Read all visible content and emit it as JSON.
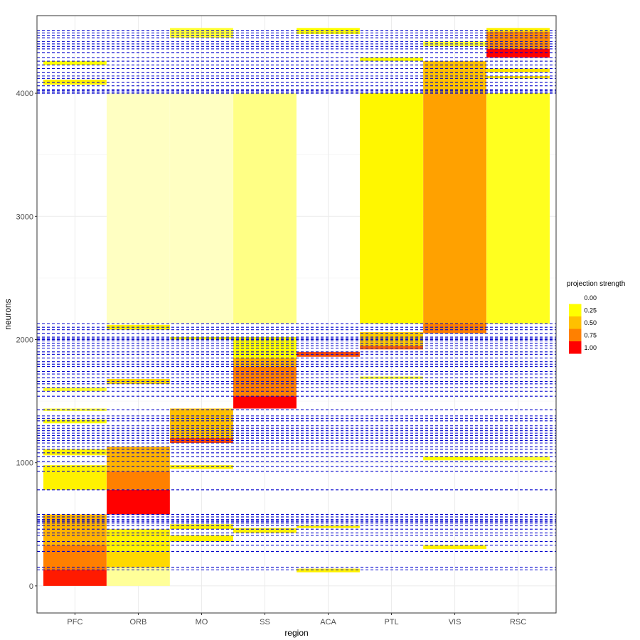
{
  "chart_data": {
    "type": "heatmap",
    "title": "",
    "xlabel": "region",
    "ylabel": "neurons",
    "categories": [
      "PFC",
      "ORB",
      "MO",
      "SS",
      "ACA",
      "PTL",
      "VIS",
      "RSC"
    ],
    "ylim": [
      -220,
      4630
    ],
    "y_ticks": [
      0,
      1000,
      2000,
      3000,
      4000
    ],
    "grid": true,
    "legend": {
      "title": "projection strength",
      "position": "right",
      "levels": [
        {
          "label": "0.00",
          "value": 0.0,
          "color": "#FFFFFF"
        },
        {
          "label": "0.25",
          "value": 0.25,
          "color": "#FFFF00"
        },
        {
          "label": "0.50",
          "value": 0.5,
          "color": "#FFC000"
        },
        {
          "label": "0.75",
          "value": 0.75,
          "color": "#FF8000"
        },
        {
          "label": "1.00",
          "value": 1.0,
          "color": "#FF0000"
        }
      ]
    },
    "cluster_boundaries": [
      130,
      150,
      280,
      330,
      360,
      410,
      430,
      460,
      490,
      510,
      520,
      530,
      540,
      560,
      580,
      780,
      930,
      970,
      1010,
      1050,
      1080,
      1110,
      1130,
      1160,
      1180,
      1200,
      1220,
      1240,
      1260,
      1280,
      1300,
      1340,
      1360,
      1380,
      1430,
      1540,
      1580,
      1610,
      1640,
      1660,
      1690,
      1720,
      1740,
      1780,
      1800,
      1820,
      1850,
      1880,
      1900,
      1930,
      1950,
      1970,
      1990,
      2000,
      2010,
      2020,
      2050,
      2080,
      2100,
      2130,
      4000,
      4010,
      4020,
      4030,
      4060,
      4090,
      4120,
      4140,
      4170,
      4200,
      4230,
      4260,
      4290,
      4330,
      4360,
      4380,
      4400,
      4420,
      4450,
      4470,
      4490,
      4510
    ],
    "blocks": [
      {
        "region": "PFC",
        "start": 0,
        "end": 130,
        "value": 0.95
      },
      {
        "region": "PFC",
        "start": 130,
        "end": 330,
        "value": 0.75
      },
      {
        "region": "PFC",
        "start": 330,
        "end": 580,
        "value": 0.55
      },
      {
        "region": "PFC",
        "start": 780,
        "end": 980,
        "value": 0.3
      },
      {
        "region": "PFC",
        "start": 1060,
        "end": 1110,
        "value": 0.3
      },
      {
        "region": "PFC",
        "start": 1320,
        "end": 1350,
        "value": 0.25
      },
      {
        "region": "PFC",
        "start": 1420,
        "end": 1440,
        "value": 0.2
      },
      {
        "region": "PFC",
        "start": 1580,
        "end": 1610,
        "value": 0.2
      },
      {
        "region": "PFC",
        "start": 4070,
        "end": 4110,
        "value": 0.3
      },
      {
        "region": "PFC",
        "start": 4230,
        "end": 4260,
        "value": 0.25
      },
      {
        "region": "ORB",
        "start": 0,
        "end": 150,
        "value": 0.1
      },
      {
        "region": "ORB",
        "start": 150,
        "end": 280,
        "value": 0.4
      },
      {
        "region": "ORB",
        "start": 280,
        "end": 460,
        "value": 0.3
      },
      {
        "region": "ORB",
        "start": 580,
        "end": 780,
        "value": 1.0
      },
      {
        "region": "ORB",
        "start": 780,
        "end": 930,
        "value": 0.75
      },
      {
        "region": "ORB",
        "start": 930,
        "end": 1130,
        "value": 0.55
      },
      {
        "region": "ORB",
        "start": 1640,
        "end": 1680,
        "value": 0.4
      },
      {
        "region": "ORB",
        "start": 2080,
        "end": 2120,
        "value": 0.3
      },
      {
        "region": "ORB",
        "start": 2130,
        "end": 4000,
        "value": 0.06
      },
      {
        "region": "MO",
        "start": 360,
        "end": 410,
        "value": 0.3
      },
      {
        "region": "MO",
        "start": 460,
        "end": 500,
        "value": 0.3
      },
      {
        "region": "MO",
        "start": 950,
        "end": 980,
        "value": 0.3
      },
      {
        "region": "MO",
        "start": 1160,
        "end": 1200,
        "value": 0.85
      },
      {
        "region": "MO",
        "start": 1200,
        "end": 1440,
        "value": 0.5
      },
      {
        "region": "MO",
        "start": 2000,
        "end": 2020,
        "value": 0.25
      },
      {
        "region": "MO",
        "start": 2130,
        "end": 4000,
        "value": 0.06
      },
      {
        "region": "MO",
        "start": 4450,
        "end": 4530,
        "value": 0.2
      },
      {
        "region": "SS",
        "start": 430,
        "end": 470,
        "value": 0.3
      },
      {
        "region": "SS",
        "start": 1440,
        "end": 1540,
        "value": 1.0
      },
      {
        "region": "SS",
        "start": 1540,
        "end": 1780,
        "value": 0.75
      },
      {
        "region": "SS",
        "start": 1780,
        "end": 1850,
        "value": 0.55
      },
      {
        "region": "SS",
        "start": 1850,
        "end": 2020,
        "value": 0.25
      },
      {
        "region": "SS",
        "start": 2130,
        "end": 4000,
        "value": 0.12
      },
      {
        "region": "ACA",
        "start": 110,
        "end": 140,
        "value": 0.3
      },
      {
        "region": "ACA",
        "start": 470,
        "end": 490,
        "value": 0.3
      },
      {
        "region": "ACA",
        "start": 1860,
        "end": 1900,
        "value": 0.85
      },
      {
        "region": "ACA",
        "start": 4480,
        "end": 4530,
        "value": 0.25
      },
      {
        "region": "PTL",
        "start": 1920,
        "end": 1950,
        "value": 0.8
      },
      {
        "region": "PTL",
        "start": 1950,
        "end": 2060,
        "value": 0.45
      },
      {
        "region": "PTL",
        "start": 1680,
        "end": 1700,
        "value": 0.2
      },
      {
        "region": "PTL",
        "start": 2130,
        "end": 4000,
        "value": 0.28
      },
      {
        "region": "PTL",
        "start": 4260,
        "end": 4290,
        "value": 0.25
      },
      {
        "region": "VIS",
        "start": 300,
        "end": 330,
        "value": 0.3
      },
      {
        "region": "VIS",
        "start": 1020,
        "end": 1050,
        "value": 0.25
      },
      {
        "region": "VIS",
        "start": 2050,
        "end": 2130,
        "value": 0.75
      },
      {
        "region": "VIS",
        "start": 2130,
        "end": 4000,
        "value": 0.62
      },
      {
        "region": "VIS",
        "start": 4000,
        "end": 4260,
        "value": 0.5
      },
      {
        "region": "VIS",
        "start": 4380,
        "end": 4420,
        "value": 0.2
      },
      {
        "region": "RSC",
        "start": 1020,
        "end": 1050,
        "value": 0.2
      },
      {
        "region": "RSC",
        "start": 2130,
        "end": 4000,
        "value": 0.22
      },
      {
        "region": "RSC",
        "start": 4120,
        "end": 4140,
        "value": 0.35
      },
      {
        "region": "RSC",
        "start": 4170,
        "end": 4200,
        "value": 0.35
      },
      {
        "region": "RSC",
        "start": 4290,
        "end": 4360,
        "value": 1.0
      },
      {
        "region": "RSC",
        "start": 4360,
        "end": 4500,
        "value": 0.7
      },
      {
        "region": "RSC",
        "start": 4500,
        "end": 4530,
        "value": 0.3
      }
    ]
  }
}
